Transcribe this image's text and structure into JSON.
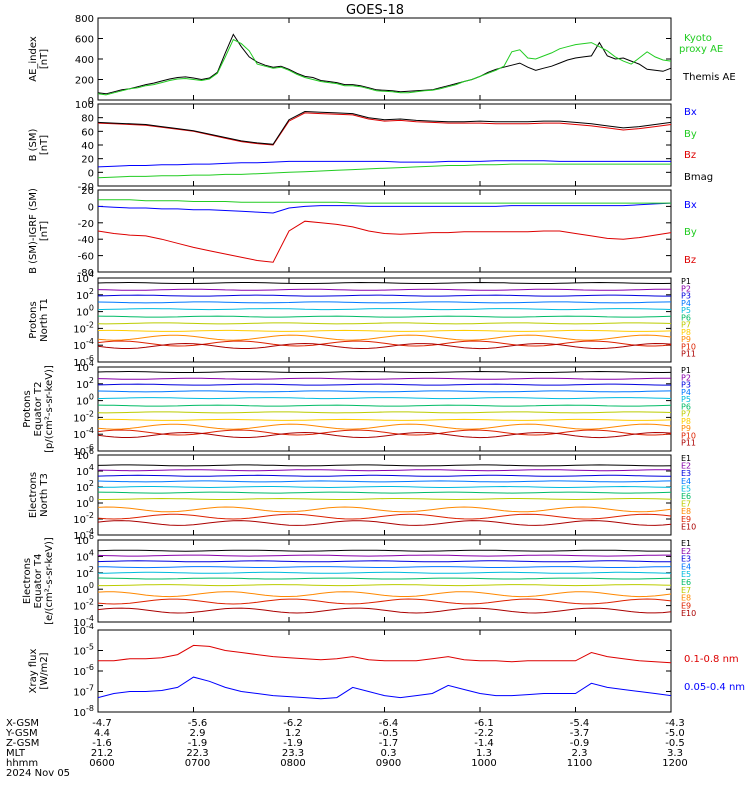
{
  "title": "GOES-18",
  "date_label": "2024 Nov 05",
  "colors": {
    "black": "#000000",
    "green": "#22cc22",
    "blue": "#0000ff",
    "red": "#dd0000"
  },
  "chart_data": [
    {
      "type": "line",
      "id": "ae",
      "ylabel": [
        "AE_index",
        "[nT]"
      ],
      "ylim": [
        0,
        800
      ],
      "y_ticks": [
        "0",
        "200",
        "400",
        "600",
        "800"
      ],
      "x": [
        0,
        5,
        10,
        15,
        20,
        25,
        30,
        35,
        40,
        45,
        50,
        55,
        60,
        65,
        70,
        75,
        80,
        85,
        90,
        95,
        100,
        105,
        110,
        115,
        120,
        125,
        130,
        135,
        140,
        145,
        150,
        155,
        160,
        165,
        170,
        175,
        180,
        185,
        190,
        195,
        200,
        205,
        210,
        215,
        220,
        225,
        230,
        235,
        240,
        245,
        250,
        255,
        260,
        265,
        270,
        275,
        280,
        285,
        290,
        295,
        300,
        305,
        310,
        315,
        320,
        325,
        330,
        335,
        340,
        345,
        350,
        355,
        360
      ],
      "series": [
        {
          "name": "Themis AE",
          "color": "black",
          "values": [
            70,
            60,
            80,
            100,
            110,
            130,
            150,
            165,
            185,
            205,
            220,
            225,
            215,
            200,
            215,
            270,
            460,
            640,
            520,
            420,
            370,
            340,
            320,
            330,
            300,
            260,
            230,
            220,
            190,
            180,
            170,
            150,
            150,
            140,
            120,
            100,
            95,
            90,
            80,
            85,
            90,
            95,
            100,
            120,
            140,
            160,
            180,
            200,
            230,
            270,
            300,
            320,
            340,
            360,
            320,
            290,
            310,
            330,
            360,
            390,
            410,
            420,
            430,
            560,
            430,
            400,
            410,
            380,
            350,
            300,
            290,
            280,
            310
          ]
        },
        {
          "name": "Kyoto proxy AE",
          "color": "green",
          "values": [
            60,
            50,
            70,
            90,
            110,
            120,
            140,
            150,
            170,
            190,
            205,
            210,
            200,
            190,
            205,
            260,
            420,
            590,
            550,
            480,
            350,
            330,
            310,
            320,
            290,
            250,
            220,
            200,
            180,
            170,
            160,
            140,
            140,
            130,
            110,
            90,
            85,
            80,
            70,
            70,
            80,
            90,
            95,
            110,
            130,
            150,
            180,
            200,
            230,
            260,
            290,
            330,
            470,
            490,
            410,
            400,
            430,
            460,
            500,
            520,
            540,
            550,
            560,
            520,
            480,
            420,
            380,
            350,
            410,
            470,
            420,
            390,
            380
          ]
        }
      ],
      "legend": [
        "Kyoto",
        "proxy AE",
        "Themis AE"
      ]
    },
    {
      "type": "line",
      "id": "bsm",
      "ylabel": [
        "B (SM)",
        "[nT]"
      ],
      "ylim": [
        -20,
        100
      ],
      "y_ticks": [
        "-20",
        "0",
        "20",
        "40",
        "60",
        "80",
        "100"
      ],
      "x": [
        0,
        10,
        20,
        30,
        40,
        50,
        60,
        70,
        80,
        90,
        100,
        110,
        120,
        130,
        140,
        150,
        160,
        170,
        180,
        190,
        200,
        210,
        220,
        230,
        240,
        250,
        260,
        270,
        280,
        290,
        300,
        310,
        320,
        330,
        340,
        350,
        360
      ],
      "series": [
        {
          "name": "Bx",
          "color": "blue",
          "values": [
            8,
            9,
            10,
            10,
            11,
            11,
            12,
            12,
            13,
            14,
            14,
            15,
            16,
            16,
            16,
            16,
            16,
            16,
            16,
            15,
            15,
            15,
            16,
            16,
            16,
            17,
            17,
            17,
            17,
            16,
            16,
            16,
            16,
            16,
            16,
            16,
            16
          ]
        },
        {
          "name": "By",
          "color": "green",
          "values": [
            -8,
            -7,
            -6,
            -6,
            -5,
            -5,
            -4,
            -4,
            -3,
            -3,
            -2,
            -1,
            0,
            1,
            2,
            3,
            4,
            5,
            6,
            7,
            8,
            9,
            10,
            10,
            11,
            11,
            12,
            12,
            12,
            12,
            12,
            12,
            12,
            12,
            12,
            12,
            12
          ]
        },
        {
          "name": "Bz",
          "color": "red",
          "values": [
            72,
            71,
            70,
            69,
            66,
            63,
            60,
            55,
            50,
            45,
            42,
            40,
            75,
            87,
            86,
            85,
            84,
            78,
            75,
            76,
            74,
            73,
            72,
            72,
            72,
            71,
            71,
            71,
            72,
            72,
            70,
            68,
            65,
            62,
            64,
            67,
            70
          ]
        },
        {
          "name": "Bmag",
          "color": "black",
          "values": [
            73,
            72,
            71,
            70,
            67,
            64,
            61,
            56,
            51,
            46,
            43,
            41,
            77,
            89,
            88,
            87,
            86,
            80,
            77,
            78,
            76,
            75,
            74,
            74,
            75,
            74,
            74,
            74,
            75,
            75,
            73,
            71,
            68,
            65,
            67,
            70,
            73
          ]
        }
      ],
      "legend": [
        "Bx",
        "By",
        "Bz",
        "Bmag"
      ]
    },
    {
      "type": "line",
      "id": "bigrf",
      "ylabel": [
        "B (SM)-IGRF (SM)",
        "[nT]"
      ],
      "ylim": [
        -80,
        20
      ],
      "y_ticks": [
        "-80",
        "-60",
        "-40",
        "-20",
        "0",
        "20"
      ],
      "x": [
        0,
        10,
        20,
        30,
        40,
        50,
        60,
        70,
        80,
        90,
        100,
        110,
        120,
        130,
        140,
        150,
        160,
        170,
        180,
        190,
        200,
        210,
        220,
        230,
        240,
        250,
        260,
        270,
        280,
        290,
        300,
        310,
        320,
        330,
        340,
        350,
        360
      ],
      "series": [
        {
          "name": "Bx",
          "color": "blue",
          "values": [
            0,
            -1,
            -2,
            -2,
            -3,
            -3,
            -4,
            -4,
            -5,
            -6,
            -7,
            -8,
            -2,
            0,
            1,
            1,
            1,
            0,
            0,
            0,
            0,
            0,
            0,
            0,
            0,
            0,
            1,
            1,
            1,
            1,
            1,
            1,
            1,
            1,
            2,
            3,
            4
          ]
        },
        {
          "name": "By",
          "color": "green",
          "values": [
            8,
            8,
            8,
            7,
            7,
            7,
            6,
            6,
            6,
            5,
            5,
            5,
            5,
            5,
            5,
            5,
            4,
            4,
            4,
            4,
            4,
            4,
            4,
            4,
            4,
            4,
            4,
            4,
            4,
            4,
            4,
            4,
            4,
            4,
            4,
            4,
            4
          ]
        },
        {
          "name": "Bz",
          "color": "red",
          "values": [
            -30,
            -33,
            -35,
            -36,
            -40,
            -45,
            -50,
            -54,
            -58,
            -62,
            -66,
            -68,
            -30,
            -18,
            -20,
            -22,
            -25,
            -30,
            -33,
            -34,
            -33,
            -32,
            -32,
            -31,
            -31,
            -31,
            -31,
            -31,
            -30,
            -30,
            -33,
            -36,
            -39,
            -40,
            -38,
            -35,
            -32
          ]
        }
      ],
      "legend": [
        "Bx",
        "By",
        "Bz"
      ]
    },
    {
      "type": "line",
      "id": "protons_t1",
      "ylabel": [
        "Protons",
        "North T1"
      ],
      "ylim_log": [
        -6,
        4
      ],
      "y_ticks": [
        "10^4",
        "10^2",
        "10^0",
        "10^-2",
        "10^-4",
        "10^-6"
      ],
      "channels": [
        {
          "name": "P1",
          "color": "#000000",
          "level": 3.4
        },
        {
          "name": "P2",
          "color": "#8800aa",
          "level": 2.6
        },
        {
          "name": "P3",
          "color": "#0000dd",
          "level": 1.9
        },
        {
          "name": "P4",
          "color": "#0077ff",
          "level": 1.1
        },
        {
          "name": "P5",
          "color": "#00bbdd",
          "level": 0.3
        },
        {
          "name": "P6",
          "color": "#00bb66",
          "level": -0.6
        },
        {
          "name": "P7",
          "color": "#bbcc00",
          "level": -1.4
        },
        {
          "name": "P8",
          "color": "#ffcc00",
          "level": -2.3
        },
        {
          "name": "P9",
          "color": "#ff8800",
          "level": -3.1
        },
        {
          "name": "P10",
          "color": "#dd2200",
          "level": -3.8
        },
        {
          "name": "P11",
          "color": "#aa0000",
          "level": -4.1
        }
      ]
    },
    {
      "type": "line",
      "id": "protons_t2",
      "ylabel": [
        "Protons",
        "Equator T2",
        "[p/(cm²-s-sr-keV)]"
      ],
      "ylim_log": [
        -6,
        4
      ],
      "y_ticks": [
        "10^4",
        "10^2",
        "10^0",
        "10^-2",
        "10^-4",
        "10^-6"
      ],
      "channels": [
        {
          "name": "P1",
          "color": "#000000",
          "level": 3.4
        },
        {
          "name": "P2",
          "color": "#8800aa",
          "level": 2.6
        },
        {
          "name": "P3",
          "color": "#0000dd",
          "level": 1.9
        },
        {
          "name": "P4",
          "color": "#0077ff",
          "level": 1.1
        },
        {
          "name": "P5",
          "color": "#00bbdd",
          "level": 0.3
        },
        {
          "name": "P6",
          "color": "#00bb66",
          "level": -0.6
        },
        {
          "name": "P7",
          "color": "#bbcc00",
          "level": -1.4
        },
        {
          "name": "P8",
          "color": "#ffcc00",
          "level": -2.3
        },
        {
          "name": "P9",
          "color": "#ff8800",
          "level": -3.1
        },
        {
          "name": "P10",
          "color": "#dd2200",
          "level": -3.8
        },
        {
          "name": "P11",
          "color": "#aa0000",
          "level": -4.1
        }
      ]
    },
    {
      "type": "line",
      "id": "electrons_t3",
      "ylabel": [
        "Electrons",
        "North T3"
      ],
      "ylim_log": [
        -4,
        6
      ],
      "y_ticks": [
        "10^6",
        "10^4",
        "10^2",
        "10^0",
        "10^-2",
        "10^-4"
      ],
      "channels": [
        {
          "name": "E1",
          "color": "#000000",
          "level": 4.7
        },
        {
          "name": "E2",
          "color": "#8800aa",
          "level": 4.1
        },
        {
          "name": "E3",
          "color": "#0000dd",
          "level": 3.4
        },
        {
          "name": "E4",
          "color": "#0077ff",
          "level": 2.7
        },
        {
          "name": "E5",
          "color": "#00bbdd",
          "level": 2.0
        },
        {
          "name": "E6",
          "color": "#00bb66",
          "level": 1.3
        },
        {
          "name": "E7",
          "color": "#bbcc00",
          "level": 0.5
        },
        {
          "name": "E8",
          "color": "#ff8800",
          "level": -0.8
        },
        {
          "name": "E9",
          "color": "#dd2200",
          "level": -1.7
        },
        {
          "name": "E10",
          "color": "#aa0000",
          "level": -2.5
        }
      ]
    },
    {
      "type": "line",
      "id": "electrons_t4",
      "ylabel": [
        "Electrons",
        "Equator T4",
        "[e/(cm²-s-sr-keV)]"
      ],
      "ylim_log": [
        -4,
        6
      ],
      "y_ticks": [
        "10^6",
        "10^4",
        "10^2",
        "10^0",
        "10^-2",
        "10^-4"
      ],
      "channels": [
        {
          "name": "E1",
          "color": "#000000",
          "level": 4.7
        },
        {
          "name": "E2",
          "color": "#8800aa",
          "level": 4.1
        },
        {
          "name": "E3",
          "color": "#0000dd",
          "level": 3.4
        },
        {
          "name": "E4",
          "color": "#0077ff",
          "level": 2.7
        },
        {
          "name": "E5",
          "color": "#00bbdd",
          "level": 2.0
        },
        {
          "name": "E6",
          "color": "#00bb66",
          "level": 1.3
        },
        {
          "name": "E7",
          "color": "#bbcc00",
          "level": 0.5
        },
        {
          "name": "E8",
          "color": "#ff8800",
          "level": -0.6
        },
        {
          "name": "E9",
          "color": "#dd2200",
          "level": -1.5
        },
        {
          "name": "E10",
          "color": "#aa0000",
          "level": -2.6
        }
      ]
    },
    {
      "type": "line",
      "id": "xray",
      "ylabel": [
        "Xray flux",
        "[W/m2]"
      ],
      "ylim_log": [
        -8,
        -4
      ],
      "y_ticks": [
        "10^-4",
        "10^-5",
        "10^-6",
        "10^-7",
        "10^-8"
      ],
      "x": [
        0,
        10,
        20,
        30,
        40,
        50,
        60,
        70,
        80,
        90,
        100,
        110,
        120,
        130,
        140,
        150,
        160,
        170,
        180,
        190,
        200,
        210,
        220,
        230,
        240,
        250,
        260,
        270,
        280,
        290,
        300,
        310,
        320,
        330,
        340,
        350,
        360
      ],
      "series": [
        {
          "name": "0.1-0.8 nm",
          "color": "red",
          "values": [
            -5.5,
            -5.5,
            -5.4,
            -5.4,
            -5.35,
            -5.2,
            -4.75,
            -4.8,
            -5.0,
            -5.1,
            -5.2,
            -5.3,
            -5.35,
            -5.4,
            -5.45,
            -5.4,
            -5.3,
            -5.45,
            -5.5,
            -5.5,
            -5.5,
            -5.4,
            -5.3,
            -5.45,
            -5.5,
            -5.5,
            -5.55,
            -5.5,
            -5.5,
            -5.5,
            -5.5,
            -5.1,
            -5.3,
            -5.4,
            -5.5,
            -5.55,
            -5.6
          ]
        },
        {
          "name": "0.05-0.4 nm",
          "color": "blue",
          "values": [
            -7.3,
            -7.1,
            -7.0,
            -7.0,
            -6.95,
            -6.8,
            -6.3,
            -6.5,
            -6.8,
            -7.0,
            -7.1,
            -7.2,
            -7.25,
            -7.3,
            -7.35,
            -7.3,
            -6.8,
            -7.0,
            -7.2,
            -7.3,
            -7.2,
            -7.1,
            -6.7,
            -6.9,
            -7.1,
            -7.2,
            -7.2,
            -7.15,
            -7.1,
            -7.1,
            -7.1,
            -6.6,
            -6.8,
            -6.9,
            -7.0,
            -7.1,
            -7.2
          ]
        }
      ],
      "legend": [
        "0.1-0.8 nm",
        "0.05-0.4 nm"
      ]
    }
  ],
  "xaxis": {
    "labels": [
      "X-GSM",
      "Y-GSM",
      "Z-GSM",
      "MLT",
      "hhmm"
    ],
    "columns": [
      [
        "-4.7",
        "4.4",
        "-1.6",
        "21.2",
        "0600"
      ],
      [
        "-5.6",
        "2.9",
        "-1.9",
        "22.3",
        "0700"
      ],
      [
        "-6.2",
        "1.2",
        "-1.9",
        "23.3",
        "0800"
      ],
      [
        "-6.4",
        "-0.5",
        "-1.7",
        "0.3",
        "0900"
      ],
      [
        "-6.1",
        "-2.2",
        "-1.4",
        "1.3",
        "1000"
      ],
      [
        "-5.4",
        "-3.7",
        "-0.9",
        "2.3",
        "1100"
      ],
      [
        "-4.3",
        "-5.0",
        "-0.5",
        "3.3",
        "1200"
      ]
    ]
  }
}
